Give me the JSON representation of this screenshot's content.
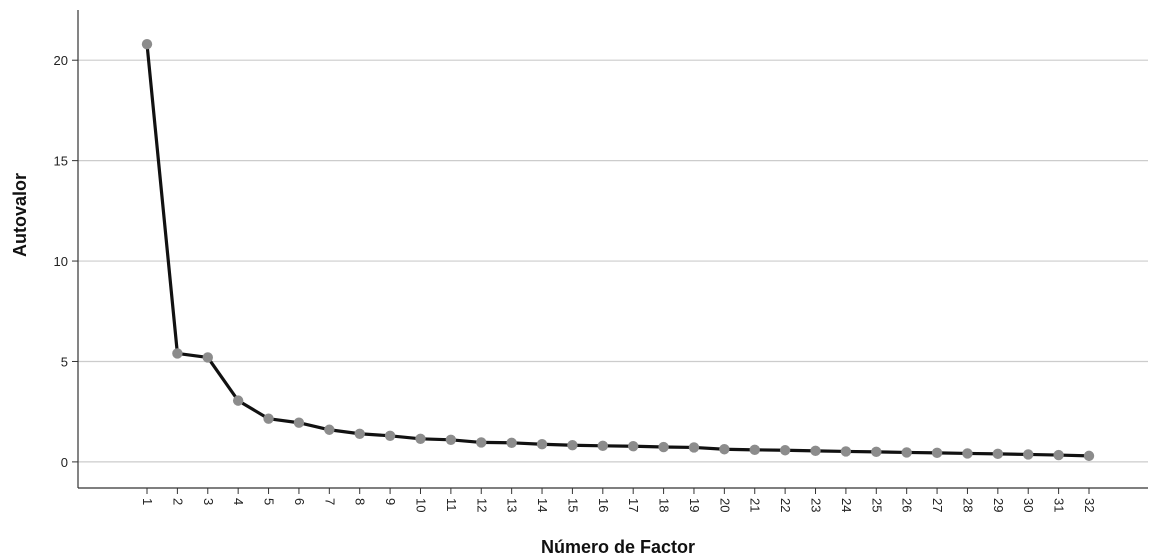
{
  "chart_data": {
    "type": "line",
    "title": "",
    "xlabel": "Número de Factor",
    "ylabel": "Autovalor",
    "categories": [
      "1",
      "2",
      "3",
      "4",
      "5",
      "6",
      "7",
      "8",
      "9",
      "10",
      "11",
      "12",
      "13",
      "14",
      "15",
      "16",
      "17",
      "18",
      "19",
      "20",
      "21",
      "22",
      "23",
      "24",
      "25",
      "26",
      "27",
      "28",
      "29",
      "30",
      "31",
      "32"
    ],
    "values": [
      20.8,
      5.4,
      5.2,
      3.05,
      2.15,
      1.95,
      1.6,
      1.4,
      1.3,
      1.15,
      1.1,
      0.97,
      0.95,
      0.88,
      0.83,
      0.8,
      0.78,
      0.74,
      0.72,
      0.63,
      0.6,
      0.58,
      0.55,
      0.52,
      0.5,
      0.47,
      0.45,
      0.42,
      0.4,
      0.37,
      0.34,
      0.3
    ],
    "yticks": [
      0,
      5,
      10,
      15,
      20
    ],
    "ylim": [
      -1.3,
      22.5
    ],
    "grid": true,
    "colors": {
      "line": "#111111",
      "marker": "#8c8c8c",
      "grid": "#cccccc",
      "axis": "#333333"
    }
  }
}
